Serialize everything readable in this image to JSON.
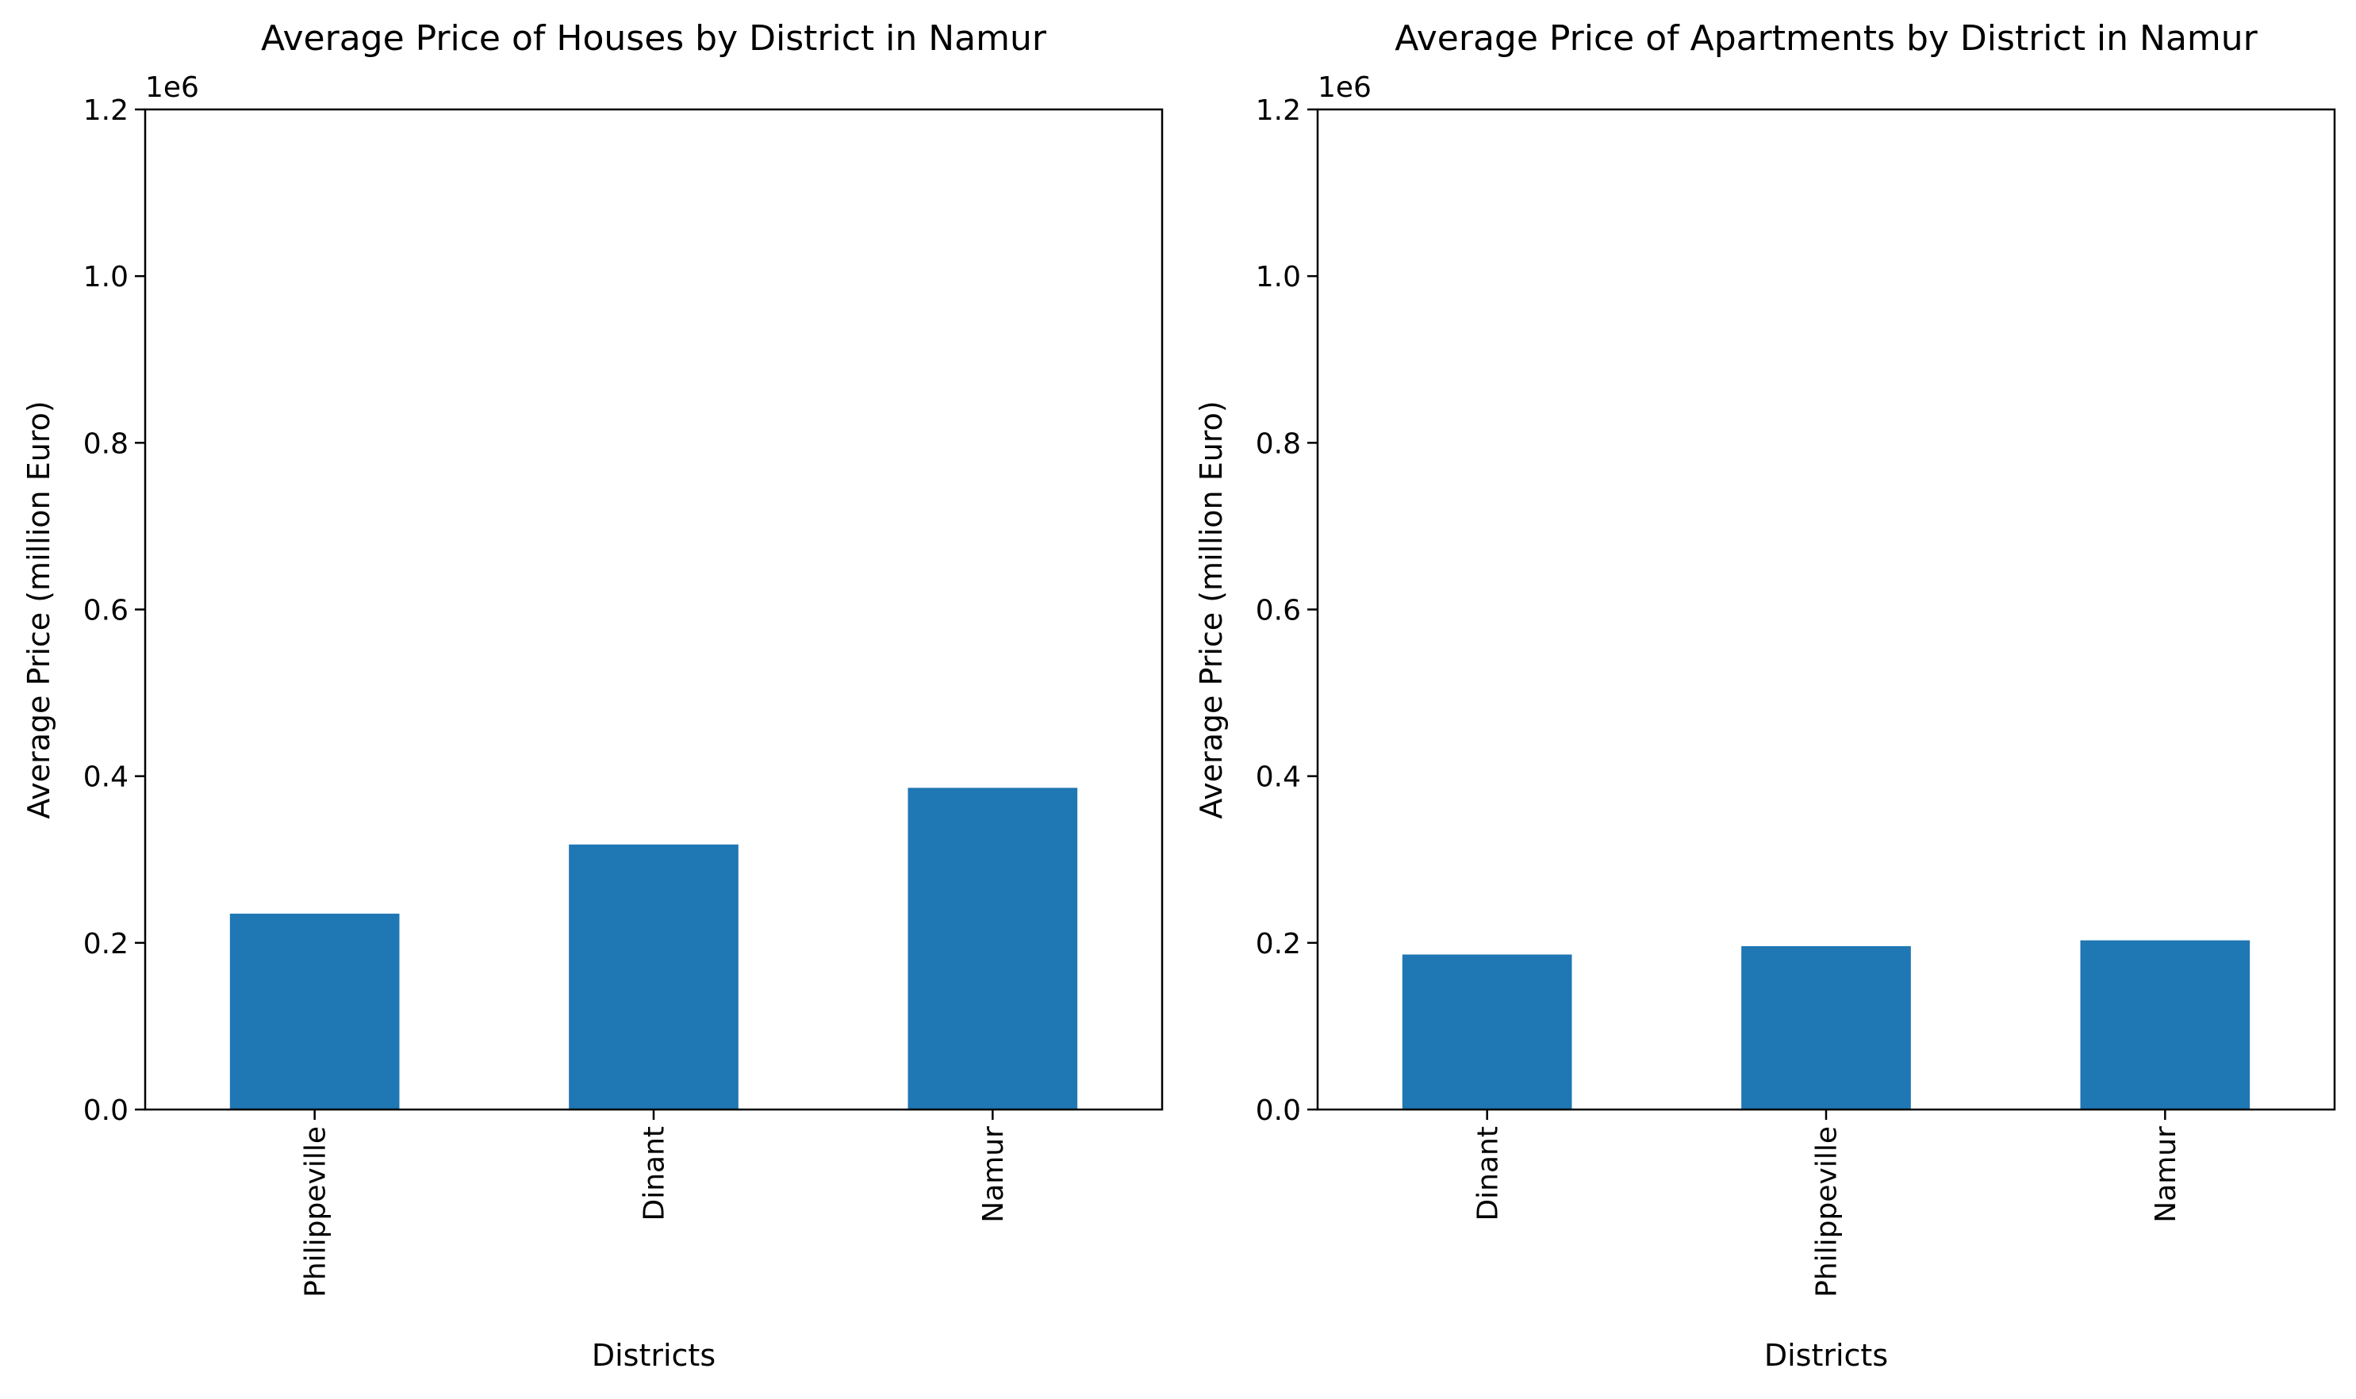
{
  "colors": {
    "bar": "#1f77b4",
    "axis": "#000000",
    "background": "#ffffff"
  },
  "chart_data": [
    {
      "type": "bar",
      "title": "Average Price of Houses by District in Namur",
      "xlabel": "Districts",
      "ylabel": "Average Price (million Euro)",
      "offset_label": "1e6",
      "categories": [
        "Philippeville",
        "Dinant",
        "Namur"
      ],
      "values": [
        235000,
        318000,
        386000
      ],
      "ylim": [
        0,
        1200000
      ],
      "yticks": [
        0,
        200000,
        400000,
        600000,
        800000,
        1000000,
        1200000
      ],
      "ytick_labels": [
        "0.0",
        "0.2",
        "0.4",
        "0.6",
        "0.8",
        "1.0",
        "1.2"
      ],
      "grid": false,
      "legend": "none"
    },
    {
      "type": "bar",
      "title": "Average Price of Apartments by District in Namur",
      "xlabel": "Districts",
      "ylabel": "Average Price (million Euro)",
      "offset_label": "1e6",
      "categories": [
        "Dinant",
        "Philippeville",
        "Namur"
      ],
      "values": [
        186000,
        196000,
        203000
      ],
      "ylim": [
        0,
        1200000
      ],
      "yticks": [
        0,
        200000,
        400000,
        600000,
        800000,
        1000000,
        1200000
      ],
      "ytick_labels": [
        "0.0",
        "0.2",
        "0.4",
        "0.6",
        "0.8",
        "1.0",
        "1.2"
      ],
      "grid": false,
      "legend": "none"
    }
  ]
}
